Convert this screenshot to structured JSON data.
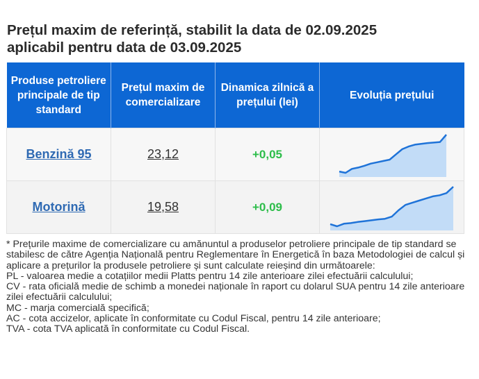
{
  "title": {
    "line1": "Prețul maxim de referință, stabilit la data de 02.09.2025",
    "line2": "aplicabil pentru data de 03.09.2025"
  },
  "table": {
    "headers": [
      "Produse petroliere principale de tip standard",
      "Prețul maxim de comercializare",
      "Dinamica zilnică a prețului (lei)",
      "Evoluția prețului"
    ],
    "rows": [
      {
        "product": "Benzină 95",
        "price": "23,12",
        "delta": "+0,05",
        "trend": [
          20.5,
          20.45,
          20.6,
          20.65,
          20.72,
          20.8,
          20.85,
          20.9,
          20.95,
          21.15,
          21.35,
          21.45,
          21.52,
          21.55,
          21.58,
          21.6,
          21.62,
          21.9
        ]
      },
      {
        "product": "Motorină",
        "price": "19,58",
        "delta": "+0,09",
        "trend": [
          17.3,
          17.2,
          17.32,
          17.35,
          17.4,
          17.44,
          17.48,
          17.52,
          17.55,
          17.65,
          17.95,
          18.2,
          18.3,
          18.4,
          18.5,
          18.6,
          18.65,
          18.75,
          19.05
        ]
      }
    ],
    "trend_color": "#1f73d8",
    "trend_fill": "#b9d7f7"
  },
  "notes": [
    "* Prețurile maxime de comercializare cu amănuntul a produselor petroliere principale de tip standard se stabilesc de către Agenția Națională pentru Reglementare în Energetică în baza Metodologiei de calcul și aplicare a prețurilor la produsele petroliere și sunt calculate reieșind din următoarele:",
    "PL - valoarea medie a cotațiilor medii Platts pentru 14 zile anterioare zilei efectuării calculului;",
    "CV - rata oficială medie de schimb a monedei naționale în raport cu dolarul SUA pentru 14 zile anterioare zilei efectuării calculului;",
    "MC - marja comercială specifică;",
    "AC - cota accizelor, aplicate în conformitate cu Codul Fiscal, pentru 14 zile anterioare;",
    "TVA - cota TVA aplicată în conformitate cu Codul Fiscal."
  ]
}
